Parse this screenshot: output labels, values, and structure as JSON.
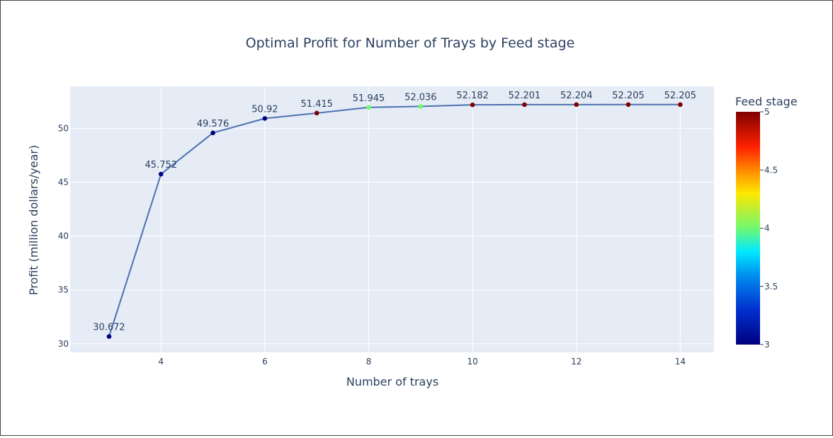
{
  "chart_data": {
    "type": "line",
    "title": "Optimal Profit for Number of Trays by Feed stage",
    "xlabel": "Number of trays",
    "ylabel": "Profit (million dollars/year)",
    "x": [
      3,
      4,
      5,
      6,
      7,
      8,
      9,
      10,
      11,
      12,
      13,
      14
    ],
    "y": [
      30.672,
      45.752,
      49.576,
      50.92,
      51.415,
      51.945,
      52.036,
      52.182,
      52.201,
      52.204,
      52.205,
      52.205
    ],
    "data_labels": [
      "30.672",
      "45.752",
      "49.576",
      "50.92",
      "51.415",
      "51.945",
      "52.036",
      "52.182",
      "52.201",
      "52.204",
      "52.205",
      "52.205"
    ],
    "feed_stage": [
      3,
      3,
      3,
      3,
      5,
      4,
      4,
      5,
      5,
      5,
      5,
      5
    ],
    "xlim": [
      2.25,
      14.65
    ],
    "ylim": [
      29.2,
      53.9
    ],
    "xticks": [
      4,
      6,
      8,
      10,
      12,
      14
    ],
    "yticks": [
      30,
      35,
      40,
      45,
      50
    ],
    "grid": true,
    "colorbar": {
      "title": "Feed stage",
      "min": 3,
      "max": 5,
      "ticks": [
        3,
        3.5,
        4,
        4.5,
        5
      ],
      "tick_labels": [
        "3",
        "3.5",
        "4",
        "4.5",
        "5"
      ],
      "colorscale": [
        [
          0,
          "#000080"
        ],
        [
          0.15,
          "#0030d0"
        ],
        [
          0.3,
          "#0090f0"
        ],
        [
          0.4,
          "#00eaff"
        ],
        [
          0.5,
          "#70f870"
        ],
        [
          0.65,
          "#ffe800"
        ],
        [
          0.75,
          "#ff8800"
        ],
        [
          0.85,
          "#ff2000"
        ],
        [
          1,
          "#800000"
        ]
      ]
    },
    "colors": {
      "line": "#4c72b0",
      "plot_background": "#e5ecf6",
      "grid": "#ffffff",
      "text": "#2a3f5f"
    }
  }
}
